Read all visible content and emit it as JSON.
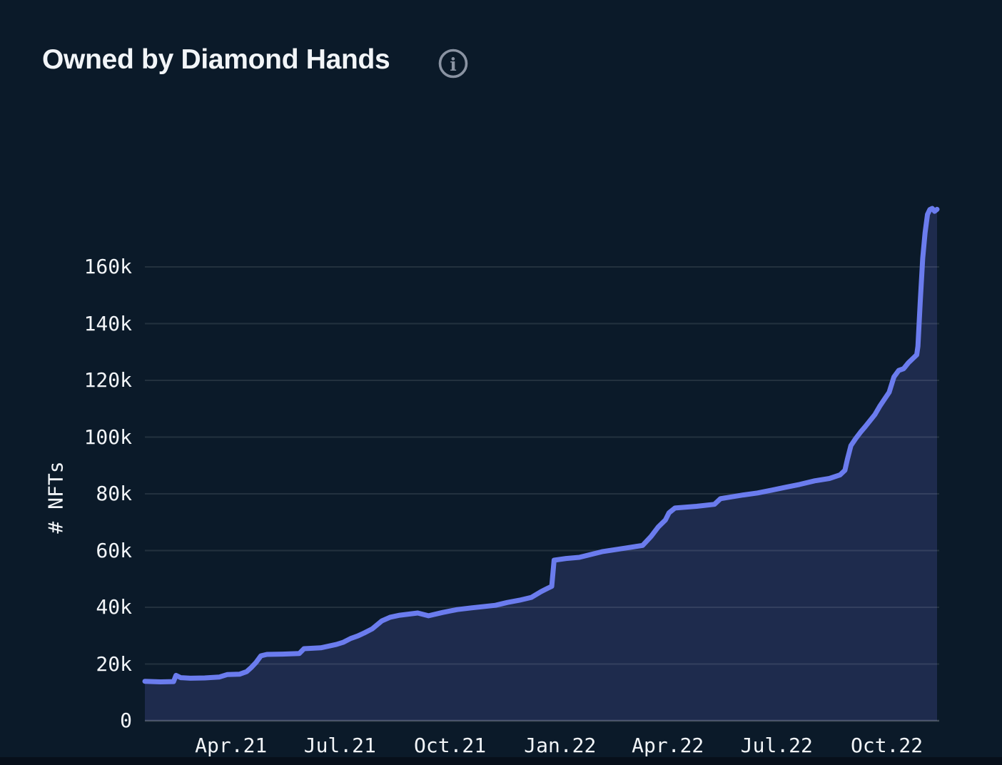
{
  "header": {
    "title": "Owned by Diamond Hands",
    "info_icon": "info-circle-icon"
  },
  "colors": {
    "background": "#0B1A29",
    "bottom_edge": "#070F1A",
    "line": "#6B7CEE",
    "area_fill": "#1E2B4D",
    "grid": "rgba(255,255,255,0.10)",
    "baseline": "rgba(255,255,255,0.22)",
    "text": "#F2F5F8",
    "icon": "#8A93A2"
  },
  "chart_data": {
    "type": "area",
    "title": "Owned by Diamond Hands",
    "xlabel": "",
    "ylabel": "# NFTs",
    "grid": true,
    "legend": false,
    "xlim": [
      "2021-01-19",
      "2022-11-12"
    ],
    "ylim": [
      0,
      193000
    ],
    "x_ticks": [
      {
        "date": "2021-04-01",
        "label": "Apr.21"
      },
      {
        "date": "2021-07-01",
        "label": "Jul.21"
      },
      {
        "date": "2021-10-01",
        "label": "Oct.21"
      },
      {
        "date": "2022-01-01",
        "label": "Jan.22"
      },
      {
        "date": "2022-04-01",
        "label": "Apr.22"
      },
      {
        "date": "2022-07-01",
        "label": "Jul.22"
      },
      {
        "date": "2022-10-01",
        "label": "Oct.22"
      }
    ],
    "y_ticks": [
      {
        "value": 0,
        "label": "0"
      },
      {
        "value": 20000,
        "label": "20k"
      },
      {
        "value": 40000,
        "label": "40k"
      },
      {
        "value": 60000,
        "label": "60k"
      },
      {
        "value": 80000,
        "label": "80k"
      },
      {
        "value": 100000,
        "label": "100k"
      },
      {
        "value": 120000,
        "label": "120k"
      },
      {
        "value": 140000,
        "label": "140k"
      },
      {
        "value": 160000,
        "label": "160k"
      }
    ],
    "series": [
      {
        "name": "# NFTs",
        "points_format": [
          "date",
          "value"
        ],
        "points": [
          [
            "2021-01-19",
            13900
          ],
          [
            "2021-02-01",
            13700
          ],
          [
            "2021-02-12",
            13800
          ],
          [
            "2021-02-14",
            16000
          ],
          [
            "2021-02-18",
            15200
          ],
          [
            "2021-02-26",
            15000
          ],
          [
            "2021-03-10",
            15100
          ],
          [
            "2021-03-22",
            15400
          ],
          [
            "2021-03-29",
            16300
          ],
          [
            "2021-04-08",
            16400
          ],
          [
            "2021-04-14",
            17300
          ],
          [
            "2021-04-18",
            18800
          ],
          [
            "2021-04-22",
            20600
          ],
          [
            "2021-04-26",
            22900
          ],
          [
            "2021-05-01",
            23400
          ],
          [
            "2021-05-14",
            23500
          ],
          [
            "2021-05-28",
            23700
          ],
          [
            "2021-06-01",
            25400
          ],
          [
            "2021-06-15",
            25700
          ],
          [
            "2021-06-28",
            26900
          ],
          [
            "2021-07-04",
            27700
          ],
          [
            "2021-07-10",
            29000
          ],
          [
            "2021-07-16",
            29900
          ],
          [
            "2021-07-22",
            31100
          ],
          [
            "2021-07-28",
            32400
          ],
          [
            "2021-08-05",
            35200
          ],
          [
            "2021-08-12",
            36500
          ],
          [
            "2021-08-20",
            37200
          ],
          [
            "2021-09-04",
            38000
          ],
          [
            "2021-09-13",
            37000
          ],
          [
            "2021-09-25",
            38200
          ],
          [
            "2021-10-07",
            39200
          ],
          [
            "2021-10-19",
            39800
          ],
          [
            "2021-11-08",
            40700
          ],
          [
            "2021-11-18",
            41700
          ],
          [
            "2021-11-28",
            42500
          ],
          [
            "2021-12-08",
            43500
          ],
          [
            "2021-12-16",
            45500
          ],
          [
            "2021-12-22",
            46800
          ],
          [
            "2021-12-25",
            47400
          ],
          [
            "2021-12-27",
            56600
          ],
          [
            "2022-01-06",
            57200
          ],
          [
            "2022-01-17",
            57600
          ],
          [
            "2022-02-05",
            59600
          ],
          [
            "2022-02-25",
            60900
          ],
          [
            "2022-03-11",
            61800
          ],
          [
            "2022-03-18",
            65000
          ],
          [
            "2022-03-24",
            68300
          ],
          [
            "2022-03-30",
            70800
          ],
          [
            "2022-04-02",
            73300
          ],
          [
            "2022-04-07",
            75000
          ],
          [
            "2022-04-25",
            75600
          ],
          [
            "2022-05-10",
            76300
          ],
          [
            "2022-05-15",
            78300
          ],
          [
            "2022-06-03",
            79600
          ],
          [
            "2022-06-15",
            80300
          ],
          [
            "2022-06-27",
            81300
          ],
          [
            "2022-07-08",
            82300
          ],
          [
            "2022-07-20",
            83300
          ],
          [
            "2022-08-02",
            84600
          ],
          [
            "2022-08-14",
            85400
          ],
          [
            "2022-08-23",
            86700
          ],
          [
            "2022-08-27",
            88300
          ],
          [
            "2022-08-29",
            92000
          ],
          [
            "2022-09-01",
            97000
          ],
          [
            "2022-09-05",
            99500
          ],
          [
            "2022-09-09",
            101700
          ],
          [
            "2022-09-13",
            103700
          ],
          [
            "2022-09-17",
            105800
          ],
          [
            "2022-09-21",
            107900
          ],
          [
            "2022-09-25",
            110800
          ],
          [
            "2022-09-29",
            113300
          ],
          [
            "2022-10-03",
            115800
          ],
          [
            "2022-10-07",
            121200
          ],
          [
            "2022-10-11",
            123500
          ],
          [
            "2022-10-15",
            124100
          ],
          [
            "2022-10-19",
            126200
          ],
          [
            "2022-10-23",
            127800
          ],
          [
            "2022-10-26",
            129000
          ],
          [
            "2022-10-27",
            132000
          ],
          [
            "2022-10-29",
            148000
          ],
          [
            "2022-10-31",
            163000
          ],
          [
            "2022-11-02",
            172000
          ],
          [
            "2022-11-04",
            178500
          ],
          [
            "2022-11-06",
            180200
          ],
          [
            "2022-11-08",
            180600
          ],
          [
            "2022-11-10",
            179600
          ],
          [
            "2022-11-12",
            180300
          ]
        ]
      }
    ]
  }
}
